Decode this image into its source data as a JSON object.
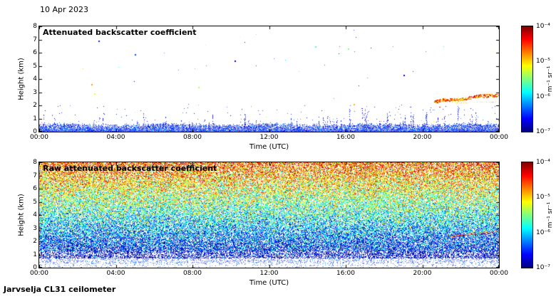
{
  "header": {
    "date_label": "10 Apr 2023"
  },
  "footer": {
    "instrument_label": "Jarvselja CL31 ceilometer"
  },
  "axes": {
    "xlabel": "Time (UTC)",
    "ylabel": "Height (km)",
    "x_tick_labels": [
      "00:00",
      "04:00",
      "08:00",
      "12:00",
      "16:00",
      "20:00",
      "00:00"
    ],
    "y_tick_labels": [
      "0",
      "1",
      "2",
      "3",
      "4",
      "5",
      "6",
      "7",
      "8"
    ],
    "xlim_hours": [
      0,
      24
    ],
    "ylim_km": [
      0,
      8
    ]
  },
  "colorbar": {
    "unit_label": "m⁻¹ sr⁻¹",
    "tick_labels": [
      "10⁻⁴",
      "10⁻⁵",
      "10⁻⁶",
      "10⁻⁷"
    ],
    "value_range": [
      "1e-7",
      "1e-4"
    ],
    "scale": "log",
    "colormap": "jet"
  },
  "chart_data": [
    {
      "type": "heatmap",
      "title": "Attenuated backscatter coefficient",
      "xlabel": "Time (UTC)",
      "ylabel": "Height (km)",
      "x_range_hours": [
        0,
        24
      ],
      "y_range_km": [
        0,
        8
      ],
      "colorbar_range": [
        "1e-7",
        "1e-4"
      ],
      "colormap": "jet",
      "features": {
        "background": "white (below detection threshold)",
        "boundary_layer": {
          "top_km": 0.45,
          "appearance": "dense blue speckle hugging the surface all day"
        },
        "noise_spikes_max_km": 1.9,
        "elevated_layer": {
          "hours": [
            20.6,
            24
          ],
          "height_km": [
            2.3,
            2.85
          ],
          "appearance": "orange-red aerosol/cloud layer rising toward midnight"
        },
        "isolated_specks": [
          {
            "hour": 2.7,
            "km": 3.6,
            "v": 0.72
          },
          {
            "hour": 2.85,
            "km": 2.9,
            "v": 0.62
          },
          {
            "hour": 3.1,
            "km": 6.9,
            "v": 0.15
          },
          {
            "hour": 5.0,
            "km": 5.9,
            "v": 0.2
          },
          {
            "hour": 8.3,
            "km": 3.4,
            "v": 0.55
          },
          {
            "hour": 10.2,
            "km": 5.4,
            "v": 0.1
          },
          {
            "hour": 14.4,
            "km": 6.5,
            "v": 0.45
          },
          {
            "hour": 16.1,
            "km": 6.3,
            "v": 0.5
          },
          {
            "hour": 16.4,
            "km": 2.1,
            "v": 0.7
          },
          {
            "hour": 19.0,
            "km": 4.3,
            "v": 0.12
          }
        ]
      }
    },
    {
      "type": "heatmap",
      "title": "Raw attenuated backscatter coefficient",
      "xlabel": "Time (UTC)",
      "ylabel": "Height (km)",
      "x_range_hours": [
        0,
        24
      ],
      "y_range_km": [
        0,
        8
      ],
      "colorbar_range": [
        "1e-7",
        "1e-4"
      ],
      "colormap": "jet",
      "features": {
        "background": "dense random speckle over the whole panel",
        "noise_profile": "speckle value increases with height: blue near surface, green/cyan mid-levels, yellow-orange-red aloft",
        "clear_band_km": [
          0,
          0.4
        ],
        "elevated_layer": {
          "hours": [
            21.3,
            24
          ],
          "height_km": [
            2.4,
            2.75
          ],
          "appearance": "faint red layer visible through the noise"
        }
      }
    }
  ]
}
